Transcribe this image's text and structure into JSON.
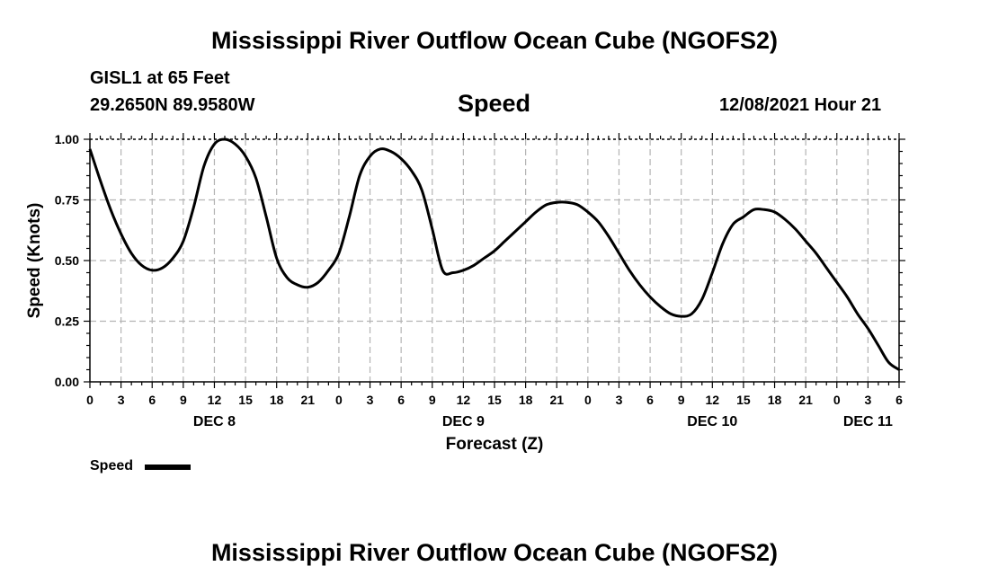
{
  "header": {
    "title": "Mississippi River Outflow Ocean Cube (NGOFS2)",
    "station": "GISL1 at 65 Feet",
    "coords": "29.2650N  89.9580W",
    "variable": "Speed",
    "datetime": "12/08/2021 Hour 21"
  },
  "footer": {
    "title": "Mississippi River Outflow Ocean Cube (NGOFS2)"
  },
  "chart_data": {
    "type": "line",
    "title": "Speed",
    "xlabel": "Forecast (Z)",
    "ylabel": "Speed (Knots)",
    "xlim": [
      0,
      78
    ],
    "ylim": [
      0,
      1
    ],
    "grid": true,
    "x_ticks": [
      0,
      3,
      6,
      9,
      12,
      15,
      18,
      21,
      24,
      27,
      30,
      33,
      36,
      39,
      42,
      45,
      48,
      51,
      54,
      57,
      60,
      63,
      66,
      69,
      72,
      75,
      78
    ],
    "x_tick_labels": [
      "0",
      "3",
      "6",
      "9",
      "12",
      "15",
      "18",
      "21",
      "0",
      "3",
      "6",
      "9",
      "12",
      "15",
      "18",
      "21",
      "0",
      "3",
      "6",
      "9",
      "12",
      "15",
      "18",
      "21",
      "0",
      "3",
      "6"
    ],
    "y_ticks": [
      0,
      0.25,
      0.5,
      0.75,
      1.0
    ],
    "y_tick_labels": [
      "0.00",
      "0.25",
      "0.50",
      "0.75",
      "1.00"
    ],
    "day_labels": [
      {
        "label": "DEC 8",
        "x": 12
      },
      {
        "label": "DEC 9",
        "x": 36
      },
      {
        "label": "DEC 10",
        "x": 60
      },
      {
        "label": "DEC 11",
        "x": 75
      }
    ],
    "legend": [
      {
        "name": "Speed"
      }
    ],
    "series": [
      {
        "name": "Speed",
        "x": [
          0,
          1,
          2,
          3,
          4,
          5,
          6,
          7,
          8,
          9,
          10,
          11,
          12,
          13,
          14,
          15,
          16,
          17,
          18,
          19,
          20,
          21,
          22,
          23,
          24,
          25,
          26,
          27,
          28,
          29,
          30,
          31,
          32,
          33,
          34,
          35,
          36,
          37,
          38,
          39,
          40,
          41,
          42,
          43,
          44,
          45,
          46,
          47,
          48,
          49,
          50,
          51,
          52,
          53,
          54,
          55,
          56,
          57,
          58,
          59,
          60,
          61,
          62,
          63,
          64,
          65,
          66,
          67,
          68,
          69,
          70,
          71,
          72,
          73,
          74,
          75,
          76,
          77,
          78
        ],
        "y": [
          0.96,
          0.83,
          0.71,
          0.61,
          0.53,
          0.48,
          0.46,
          0.47,
          0.51,
          0.58,
          0.72,
          0.89,
          0.98,
          1.0,
          0.98,
          0.93,
          0.84,
          0.68,
          0.51,
          0.43,
          0.4,
          0.39,
          0.41,
          0.46,
          0.53,
          0.68,
          0.85,
          0.93,
          0.96,
          0.95,
          0.92,
          0.87,
          0.79,
          0.63,
          0.46,
          0.45,
          0.46,
          0.48,
          0.51,
          0.54,
          0.58,
          0.62,
          0.66,
          0.7,
          0.73,
          0.74,
          0.74,
          0.73,
          0.7,
          0.66,
          0.6,
          0.53,
          0.46,
          0.4,
          0.35,
          0.31,
          0.28,
          0.27,
          0.28,
          0.34,
          0.45,
          0.57,
          0.65,
          0.68,
          0.71,
          0.71,
          0.7,
          0.67,
          0.63,
          0.58,
          0.53,
          0.47,
          0.41,
          0.35,
          0.28,
          0.22,
          0.15,
          0.08,
          0.05
        ]
      }
    ]
  }
}
